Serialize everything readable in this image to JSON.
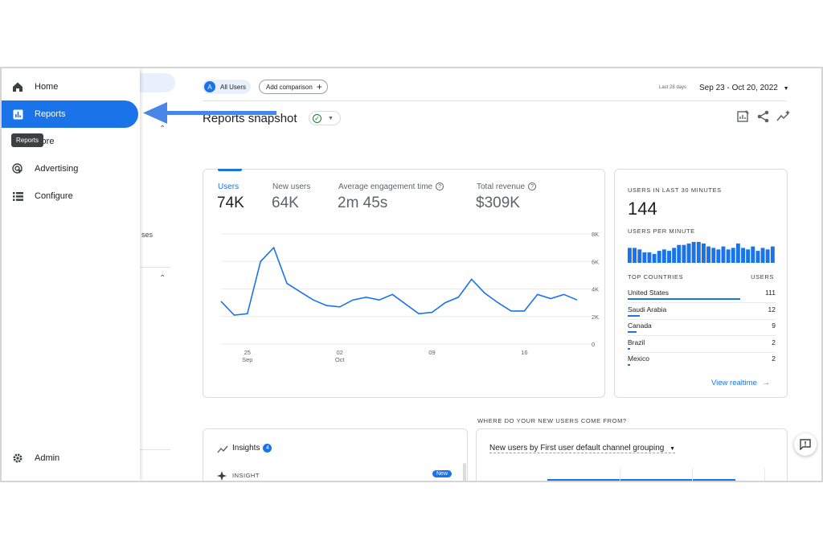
{
  "nav": {
    "items": [
      {
        "label": "Home",
        "icon": "home-icon"
      },
      {
        "label": "Reports",
        "icon": "reports-icon",
        "active": true
      },
      {
        "label": "Explore",
        "icon": "explore-icon"
      },
      {
        "label": "Advertising",
        "icon": "advertising-icon"
      },
      {
        "label": "Configure",
        "icon": "configure-icon"
      }
    ],
    "explore_visible": "plore",
    "tooltip": "Reports",
    "admin": "Admin"
  },
  "subpanel": {
    "partial_text": "ses"
  },
  "header": {
    "all_users_avatar": "A",
    "all_users": "All Users",
    "add_comparison": "Add comparison",
    "date_label": "Last 28 days",
    "date_range": "Sep 23 - Oct 20, 2022"
  },
  "title": "Reports snapshot",
  "metrics": [
    {
      "label": "Users",
      "value": "74K",
      "selected": true
    },
    {
      "label": "New users",
      "value": "64K"
    },
    {
      "label": "Average engagement time",
      "value": "2m 45s",
      "help": "?"
    },
    {
      "label": "Total revenue",
      "value": "$309K",
      "help": "?"
    }
  ],
  "chart_data": {
    "type": "line",
    "x_tick_labels": [
      {
        "day": "25",
        "month": "Sep"
      },
      {
        "day": "02",
        "month": "Oct"
      },
      {
        "day": "09",
        "month": ""
      },
      {
        "day": "16",
        "month": ""
      }
    ],
    "y_tick_labels": [
      "8K",
      "6K",
      "4K",
      "2K",
      "0"
    ],
    "ylim": [
      0,
      8000
    ],
    "series": [
      {
        "values": [
          3100,
          2100,
          2200,
          6000,
          7000,
          4400,
          3800,
          3200,
          2800,
          2700,
          3200,
          3400,
          3200,
          3600,
          2900,
          2200,
          2300,
          3000,
          3400,
          4700,
          3700,
          3000,
          2400,
          2400,
          3600,
          3300,
          3600,
          3200
        ]
      }
    ],
    "color": "#1a73e8"
  },
  "realtime": {
    "heading": "USERS IN LAST 30 MINUTES",
    "value": "144",
    "per_minute": "USERS PER MINUTE",
    "per_minute_values": [
      10,
      10,
      9,
      7,
      7,
      6,
      8,
      9,
      8,
      10,
      12,
      12,
      13,
      14,
      14,
      13,
      11,
      10,
      9,
      11,
      9,
      10,
      13,
      10,
      9,
      11,
      8,
      10,
      9,
      11
    ],
    "top_countries": "TOP COUNTRIES",
    "users_col": "USERS",
    "countries": [
      {
        "name": "United States",
        "value": "111",
        "n": 111
      },
      {
        "name": "Saudi Arabia",
        "value": "12",
        "n": 12
      },
      {
        "name": "Canada",
        "value": "9",
        "n": 9
      },
      {
        "name": "Brazil",
        "value": "2",
        "n": 2
      },
      {
        "name": "Mexico",
        "value": "2",
        "n": 2
      }
    ],
    "view_realtime": "View realtime"
  },
  "section_question": "WHERE DO YOUR NEW USERS COME FROM?",
  "insights": {
    "title": "Insights",
    "count": "4",
    "insight_label": "INSIGHT",
    "new_badge": "New"
  },
  "new_users_card": {
    "label": "New users by First user default channel grouping"
  }
}
